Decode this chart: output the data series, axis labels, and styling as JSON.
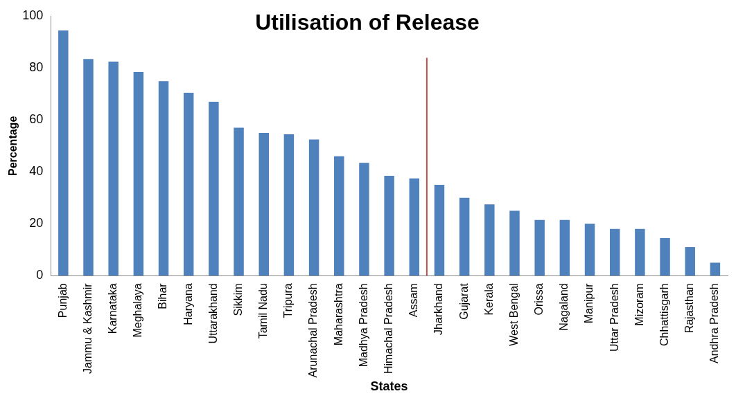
{
  "chart_data": {
    "type": "bar",
    "title": "Utilisation of Release",
    "xlabel": "States",
    "ylabel": "Percentage",
    "categories": [
      "Punjab",
      "Jammu & Kashmir",
      "Karnataka",
      "Meghalaya",
      "Bihar",
      "Haryana",
      "Uttarakhand",
      "Sikkim",
      "Tamil Nadu",
      "Tripura",
      "Arunachal Pradesh",
      "Maharashtra",
      "Madhya Pradesh",
      "Himachal Pradesh",
      "Assam",
      "Jharkhand",
      "Gujarat",
      "Kerala",
      "West Bengal",
      "Orissa",
      "Nagaland",
      "Manipur",
      "Uttar Pradesh",
      "Mizoram",
      "Chhattisgarh",
      "Rajasthan",
      "Andhra Pradesh"
    ],
    "values": [
      94.5,
      83.5,
      82.5,
      78.5,
      75,
      70.5,
      67,
      57,
      55,
      54.5,
      52.5,
      46,
      43.5,
      38.5,
      37.5,
      35,
      30,
      27.5,
      25,
      21.5,
      21.5,
      20,
      18,
      18,
      14.5,
      11,
      5
    ],
    "color": "#4f81bd",
    "ylim": [
      0,
      100
    ],
    "yticks": [
      0,
      20,
      40,
      60,
      80,
      100
    ],
    "grid": false,
    "legend": false,
    "ref_lines": [
      {
        "axis": "x",
        "value": "Jharkhand",
        "color": "#c0504d"
      }
    ]
  }
}
